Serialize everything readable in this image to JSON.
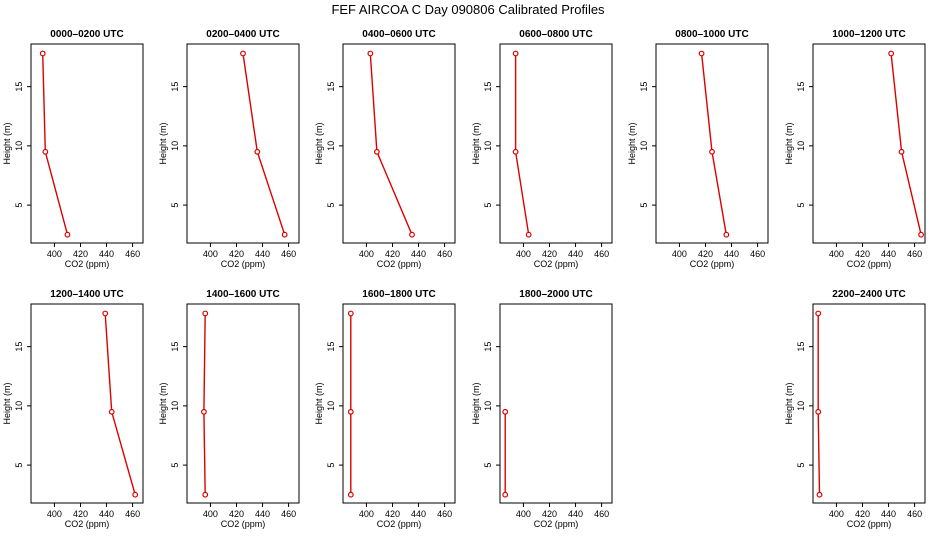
{
  "chart_data": {
    "type": "line",
    "title": "FEF AIRCOA C  Day 090806  Calibrated Profiles",
    "xlabel": "CO2 (ppm)",
    "ylabel": "Height (m)",
    "xlim": [
      382,
      468
    ],
    "ylim": [
      1.8,
      18.6
    ],
    "x_ticks": [
      400,
      420,
      440,
      460
    ],
    "y_ticks": [
      5,
      10,
      15
    ],
    "x_tick_labels": [
      "400",
      "420",
      "440",
      "460"
    ],
    "y_tick_labels": [
      "5",
      "10",
      "15"
    ],
    "line_color": "#dd0000",
    "panels": [
      {
        "title": "0000–0200 UTC",
        "points": [
          {
            "co2": 391,
            "height": 17.8
          },
          {
            "co2": 393,
            "height": 9.5
          },
          {
            "co2": 410,
            "height": 2.5
          }
        ]
      },
      {
        "title": "0200–0400 UTC",
        "points": [
          {
            "co2": 425,
            "height": 17.8
          },
          {
            "co2": 436,
            "height": 9.5
          },
          {
            "co2": 457,
            "height": 2.5
          }
        ]
      },
      {
        "title": "0400–0600 UTC",
        "points": [
          {
            "co2": 403,
            "height": 17.8
          },
          {
            "co2": 408,
            "height": 9.5
          },
          {
            "co2": 435,
            "height": 2.5
          }
        ]
      },
      {
        "title": "0600–0800 UTC",
        "points": [
          {
            "co2": 394,
            "height": 17.8
          },
          {
            "co2": 394,
            "height": 9.5
          },
          {
            "co2": 404,
            "height": 2.5
          }
        ]
      },
      {
        "title": "0800–1000 UTC",
        "points": [
          {
            "co2": 417,
            "height": 17.8
          },
          {
            "co2": 425,
            "height": 9.5
          },
          {
            "co2": 436,
            "height": 2.5
          }
        ]
      },
      {
        "title": "1000–1200 UTC",
        "points": [
          {
            "co2": 442,
            "height": 17.8
          },
          {
            "co2": 450,
            "height": 9.5
          },
          {
            "co2": 465,
            "height": 2.5
          }
        ]
      },
      {
        "title": "1200–1400 UTC",
        "points": [
          {
            "co2": 439,
            "height": 17.8
          },
          {
            "co2": 444,
            "height": 9.5
          },
          {
            "co2": 462,
            "height": 2.5
          }
        ]
      },
      {
        "title": "1400–1600 UTC",
        "points": [
          {
            "co2": 396,
            "height": 17.8
          },
          {
            "co2": 395,
            "height": 9.5
          },
          {
            "co2": 396,
            "height": 2.5
          }
        ]
      },
      {
        "title": "1600–1800 UTC",
        "points": [
          {
            "co2": 388,
            "height": 17.8
          },
          {
            "co2": 388,
            "height": 9.5
          },
          {
            "co2": 388,
            "height": 2.5
          }
        ]
      },
      {
        "title": "1800–2000 UTC",
        "points": [
          {
            "co2": 386,
            "height": 9.5
          },
          {
            "co2": 386,
            "height": 2.5
          }
        ]
      },
      null,
      {
        "title": "2200–2400 UTC",
        "points": [
          {
            "co2": 386,
            "height": 17.8
          },
          {
            "co2": 386,
            "height": 9.5
          },
          {
            "co2": 387,
            "height": 2.5
          }
        ]
      }
    ]
  }
}
